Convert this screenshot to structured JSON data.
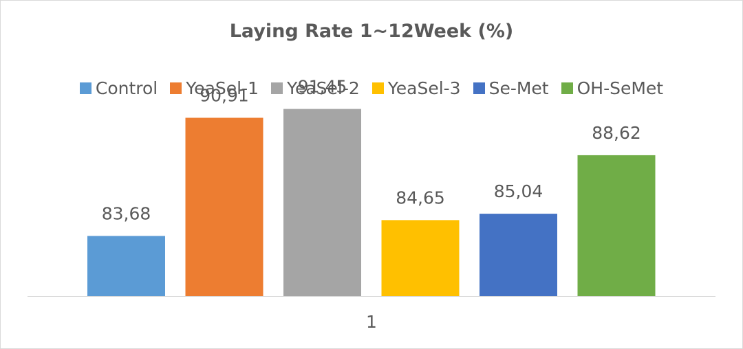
{
  "chart_data": {
    "type": "bar",
    "title": "Laying Rate 1~12Week (%)",
    "categories": [
      "1"
    ],
    "series": [
      {
        "name": "Control",
        "values": [
          83.68
        ],
        "label": "83,68",
        "color": "#5B9BD5"
      },
      {
        "name": "YeaSel-1",
        "values": [
          90.91
        ],
        "label": "90,91",
        "color": "#ED7D31"
      },
      {
        "name": "YeaSel-2",
        "values": [
          91.45
        ],
        "label": "91,45",
        "color": "#A5A5A5"
      },
      {
        "name": "YeaSel-3",
        "values": [
          84.65
        ],
        "label": "84,65",
        "color": "#FFC000"
      },
      {
        "name": "Se-Met",
        "values": [
          85.04
        ],
        "label": "85,04",
        "color": "#4472C4"
      },
      {
        "name": "OH-SeMet",
        "values": [
          88.62
        ],
        "label": "88,62",
        "color": "#70AD47"
      }
    ],
    "ylim": [
      80,
      92
    ],
    "grid": false,
    "legend_position": "top",
    "axis_color": "#d9d9d9"
  }
}
